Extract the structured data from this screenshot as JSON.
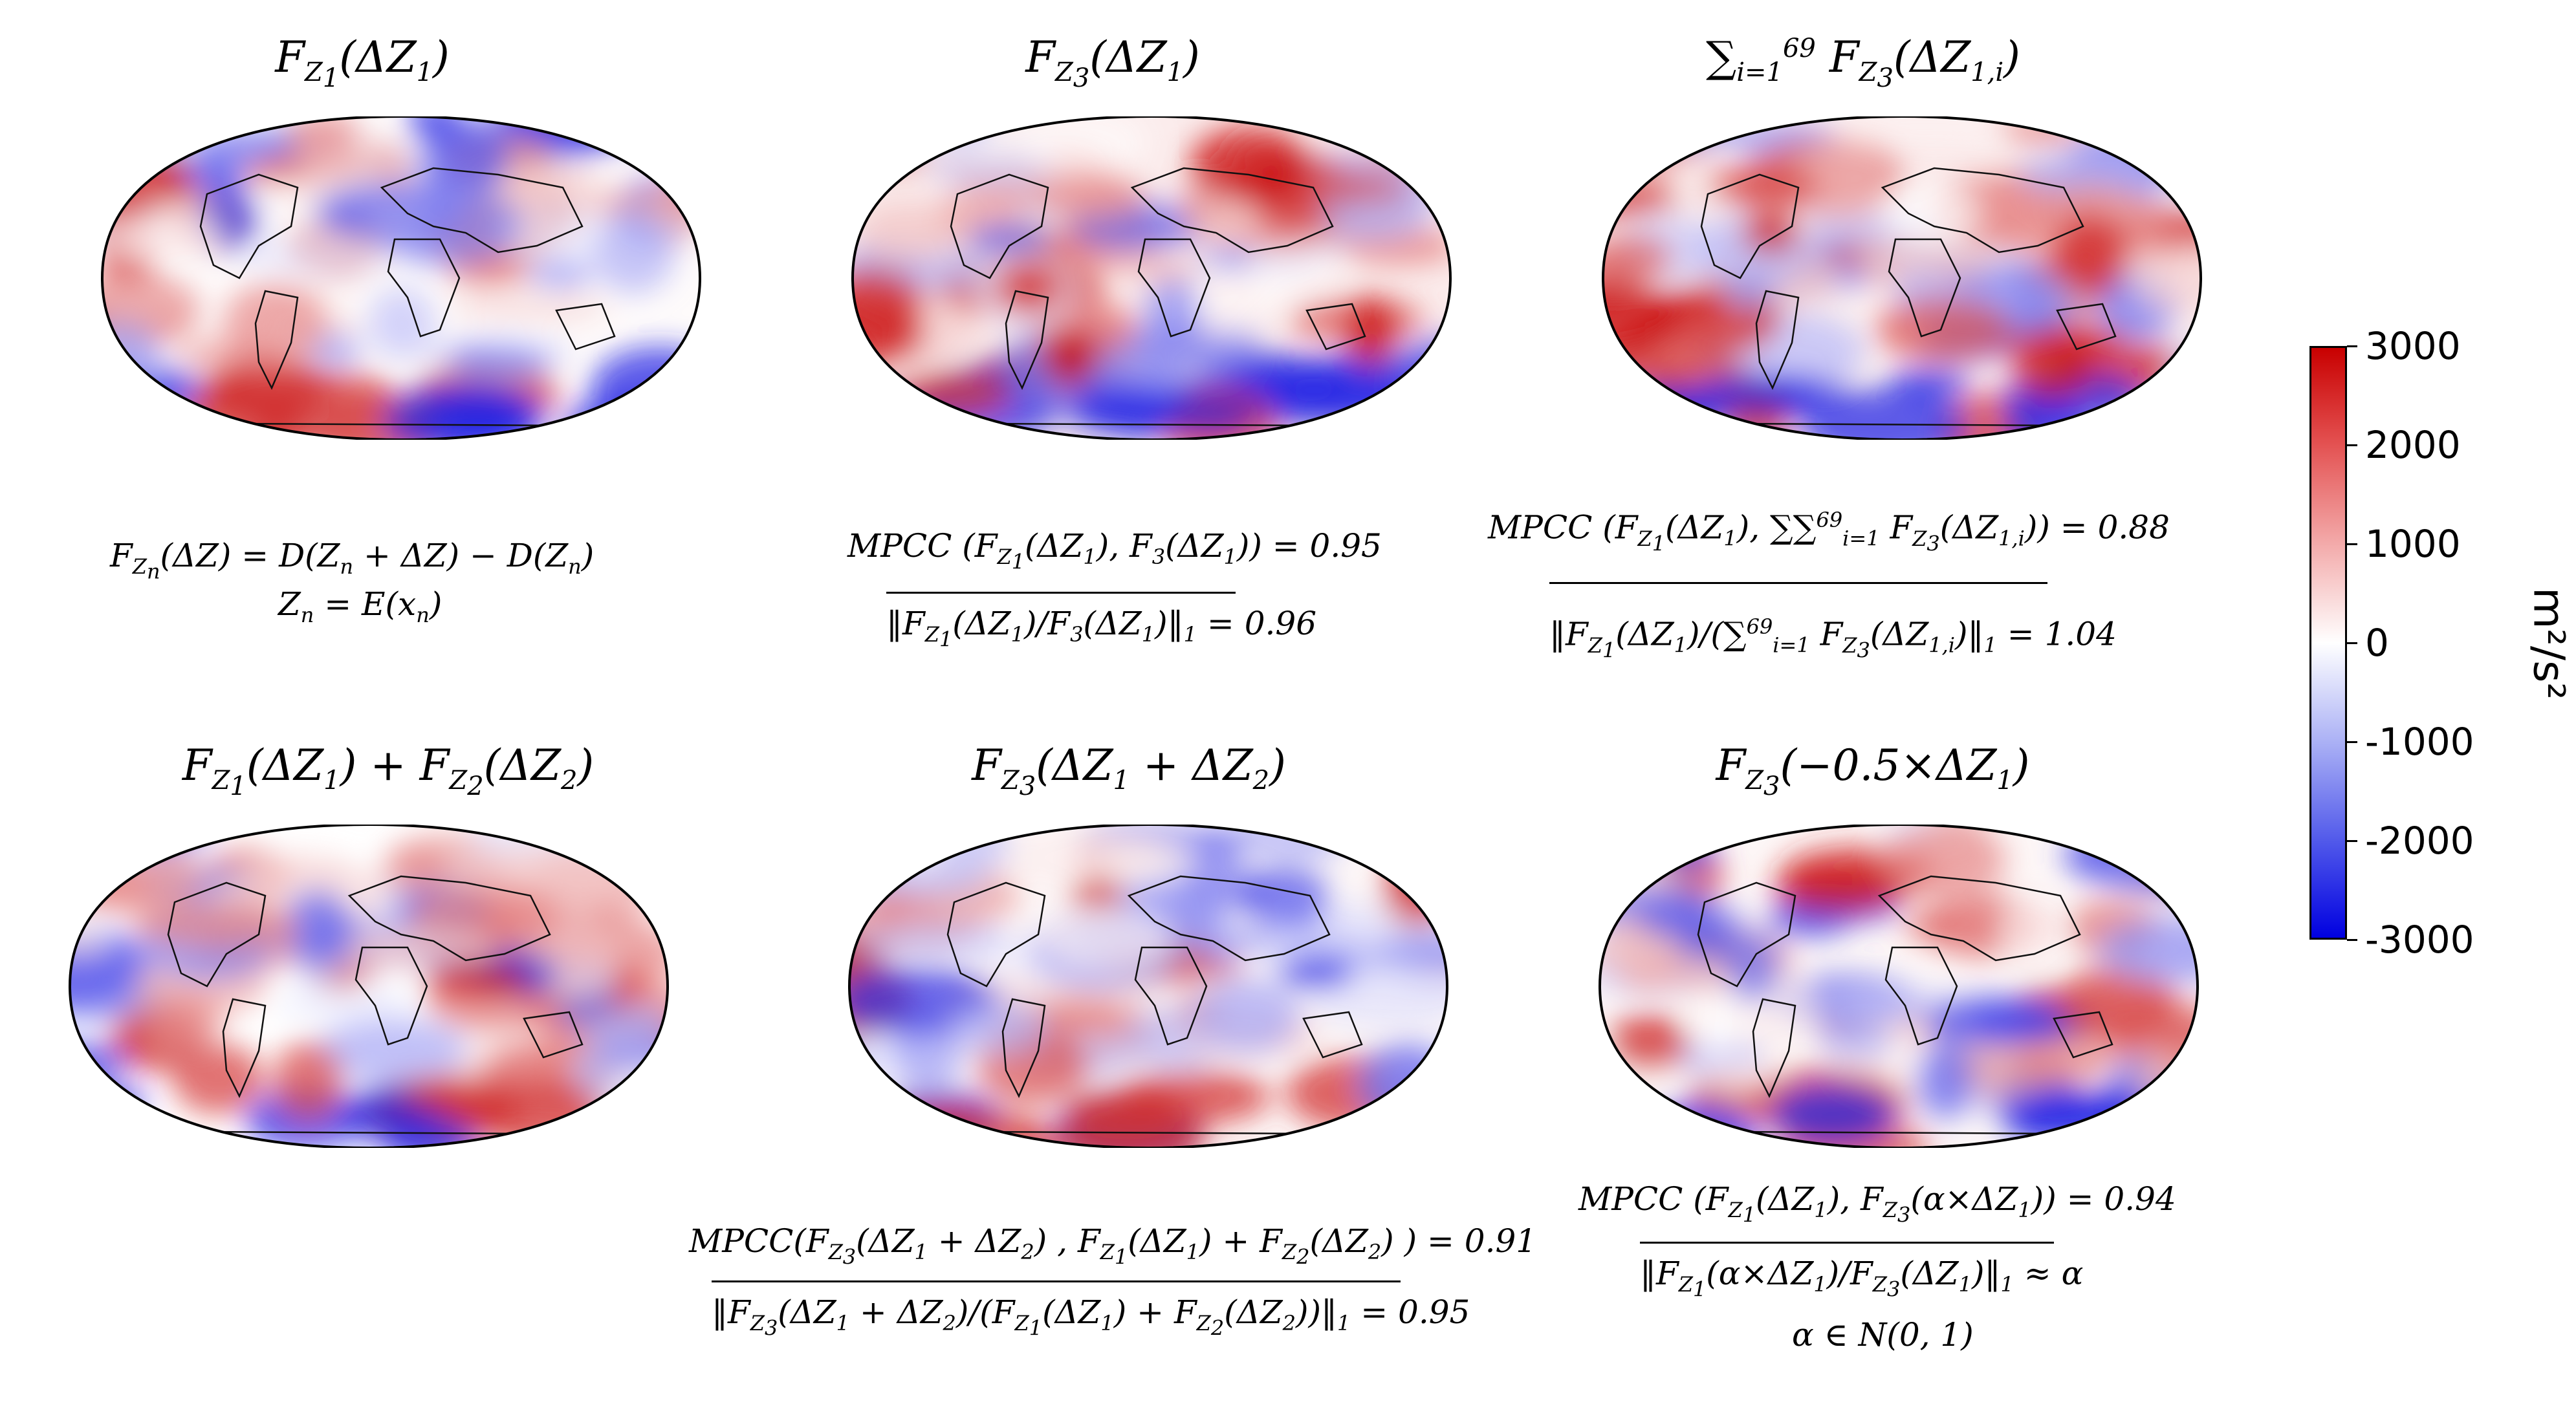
{
  "panels": [
    {
      "title_html": "F<sub>Z<sub>1</sub></sub>(ΔZ<sub>1</sub>)",
      "bias": 0.05,
      "seed": 11
    },
    {
      "title_html": "F<sub>Z<sub>3</sub></sub>(ΔZ<sub>1</sub>)",
      "bias": 0.25,
      "seed": 23
    },
    {
      "title_html": "∑<sub>i=1</sub><sup>69</sup> F<sub>Z<sub>3</sub></sub>(ΔZ<sub>1,i</sub>)",
      "bias": 0.2,
      "seed": 37
    },
    {
      "title_html": "F<sub>Z<sub>1</sub></sub>(ΔZ<sub>1</sub>) + F<sub>Z<sub>2</sub></sub>(ΔZ<sub>2</sub>)",
      "bias": 0.0,
      "seed": 41
    },
    {
      "title_html": "F<sub>Z<sub>3</sub></sub>(ΔZ<sub>1</sub> + ΔZ<sub>2</sub>)",
      "bias": 0.1,
      "seed": 53
    },
    {
      "title_html": "F<sub>Z<sub>3</sub></sub>(−0.5×ΔZ<sub>1</sub>)",
      "bias": 0.1,
      "seed": 67
    }
  ],
  "formulas": {
    "f1_line1": "F<sub>Z<sub>n</sub></sub>(ΔZ) = D(Z<sub>n</sub> + ΔZ) − D(Z<sub>n</sub>)",
    "f1_line2": "Z<sub>n</sub> = E(x<sub>n</sub>)",
    "f2_line1": "MPCC (F<sub>Z<sub>1</sub></sub>(ΔZ<sub>1</sub>), F<sub>3</sub>(ΔZ<sub>1</sub>)) = 0.95",
    "f2_line2": "‖F<sub>Z<sub>1</sub></sub>(ΔZ<sub>1</sub>)/F<sub>3</sub>(ΔZ<sub>1</sub>)‖<sub>1</sub> = 0.96",
    "f3_line1": "MPCC (F<sub>Z<sub>1</sub></sub>(ΔZ<sub>1</sub>), ∑∑<sup>69</sup><sub>i=1</sub> F<sub>Z<sub>3</sub></sub>(ΔZ<sub>1,i</sub>)) = 0.88",
    "f3_line2": "‖F<sub>Z<sub>1</sub></sub>(ΔZ<sub>1</sub>)/(∑<sup>69</sup><sub>i=1</sub> F<sub>Z<sub>3</sub></sub>(ΔZ<sub>1,i</sub>)‖<sub>1</sub> = 1.04",
    "f5_line1": "MPCC(F<sub>Z<sub>3</sub></sub>(ΔZ<sub>1</sub> + ΔZ<sub>2</sub>) , F<sub>Z<sub>1</sub></sub>(ΔZ<sub>1</sub>) + F<sub>Z<sub>2</sub></sub>(ΔZ<sub>2</sub>) ) = 0.91",
    "f5_line2": "‖F<sub>Z<sub>3</sub></sub>(ΔZ<sub>1</sub> + ΔZ<sub>2</sub>)/(F<sub>Z<sub>1</sub></sub>(ΔZ<sub>1</sub>) + F<sub>Z<sub>2</sub></sub>(ΔZ<sub>2</sub>))‖<sub>1</sub> = 0.95",
    "f6_line1": "MPCC (F<sub>Z<sub>1</sub></sub>(ΔZ<sub>1</sub>), F<sub>Z<sub>3</sub></sub>(α×ΔZ<sub>1</sub>)) = 0.94",
    "f6_line2": "‖F<sub>Z<sub>1</sub></sub>(α×ΔZ<sub>1</sub>)/F<sub>Z<sub>3</sub></sub>(ΔZ<sub>1</sub>)‖<sub>1</sub> ≈ α",
    "f6_line3": "α ∈ N(0, 1)"
  },
  "colorbar": {
    "ticks": [
      "3000",
      "2000",
      "1000",
      "0",
      "-1000",
      "-2000",
      "-3000"
    ],
    "unit": "m²/s²",
    "colors": {
      "high": "#c80000",
      "mid": "#ffffff",
      "low": "#0000e0"
    }
  }
}
